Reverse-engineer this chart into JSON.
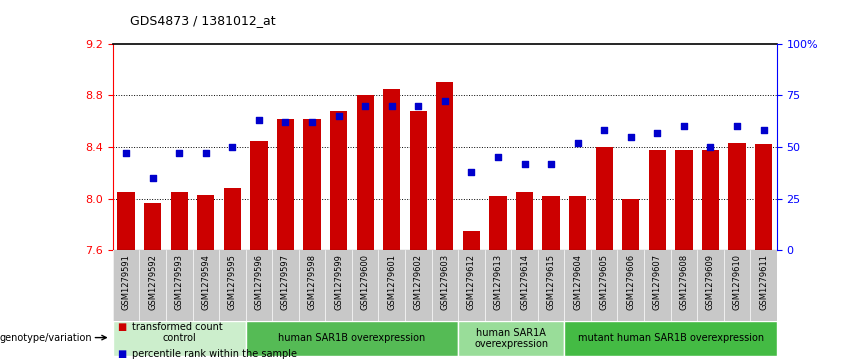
{
  "title": "GDS4873 / 1381012_at",
  "samples": [
    "GSM1279591",
    "GSM1279592",
    "GSM1279593",
    "GSM1279594",
    "GSM1279595",
    "GSM1279596",
    "GSM1279597",
    "GSM1279598",
    "GSM1279599",
    "GSM1279600",
    "GSM1279601",
    "GSM1279602",
    "GSM1279603",
    "GSM1279612",
    "GSM1279613",
    "GSM1279614",
    "GSM1279615",
    "GSM1279604",
    "GSM1279605",
    "GSM1279606",
    "GSM1279607",
    "GSM1279608",
    "GSM1279609",
    "GSM1279610",
    "GSM1279611"
  ],
  "bar_values": [
    8.05,
    7.97,
    8.05,
    8.03,
    8.08,
    8.45,
    8.62,
    8.62,
    8.68,
    8.8,
    8.85,
    8.68,
    8.9,
    7.75,
    8.02,
    8.05,
    8.02,
    8.02,
    8.4,
    8.0,
    8.38,
    8.38,
    8.38,
    8.43,
    8.42
  ],
  "percentile_values": [
    47,
    35,
    47,
    47,
    50,
    63,
    62,
    62,
    65,
    70,
    70,
    70,
    72,
    38,
    45,
    42,
    42,
    52,
    58,
    55,
    57,
    60,
    50,
    60,
    58
  ],
  "y_min": 7.6,
  "y_max": 9.2,
  "y_ticks": [
    7.6,
    8.0,
    8.4,
    8.8,
    9.2
  ],
  "right_y_ticks": [
    0,
    25,
    50,
    75,
    100
  ],
  "right_y_labels": [
    "0",
    "25",
    "50",
    "75",
    "100%"
  ],
  "bar_color": "#cc0000",
  "dot_color": "#0000cc",
  "groups": [
    {
      "label": "control",
      "start": 0,
      "end": 5,
      "color": "#cceecc"
    },
    {
      "label": "human SAR1B overexpression",
      "start": 5,
      "end": 13,
      "color": "#55bb55"
    },
    {
      "label": "human SAR1A\noverexpression",
      "start": 13,
      "end": 17,
      "color": "#99dd99"
    },
    {
      "label": "mutant human SAR1B overexpression",
      "start": 17,
      "end": 25,
      "color": "#44bb44"
    }
  ],
  "legend_items": [
    {
      "label": "transformed count",
      "color": "#cc0000"
    },
    {
      "label": "percentile rank within the sample",
      "color": "#0000cc"
    }
  ],
  "genotype_label": "genotype/variation",
  "tick_area_bg": "#c8c8c8"
}
